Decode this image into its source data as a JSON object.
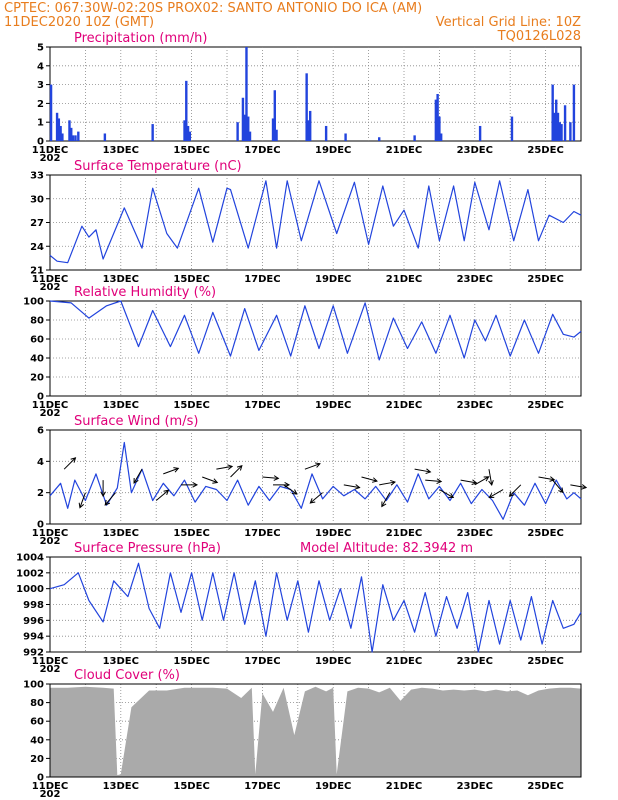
{
  "header": {
    "line1_left": "CPTEC:   067:30W-02:20S   PROX02: SANTO ANTONIO DO ICA (AM)",
    "line2_left": "11DEC2020 10Z (GMT)",
    "line2_right": "Vertical Grid Line: 10Z",
    "line3_right": "TQ0126L028"
  },
  "colors": {
    "header": "#e87d1e",
    "title": "#e0007a",
    "series": "#2244dd",
    "cloud": "#aaaaaa",
    "grid": "#888888"
  },
  "x_axis": {
    "labels": [
      "11DEC",
      "13DEC",
      "15DEC",
      "17DEC",
      "19DEC",
      "21DEC",
      "23DEC",
      "25DEC"
    ],
    "truncated_year": "202",
    "range_days": [
      0,
      15
    ]
  },
  "chart_data": [
    {
      "type": "bar",
      "name": "precip",
      "title": "Precipitation (mm/h)",
      "ylim": [
        0,
        5
      ],
      "yticks": [
        "0",
        "1",
        "2",
        "3",
        "4",
        "5"
      ],
      "x_days": [
        0.03,
        0.2,
        0.25,
        0.3,
        0.35,
        0.55,
        0.6,
        0.65,
        0.72,
        0.8,
        1.55,
        2.9,
        3.8,
        3.85,
        3.9,
        3.95,
        5.3,
        5.45,
        5.5,
        5.55,
        5.6,
        5.65,
        6.3,
        6.35,
        6.4,
        7.25,
        7.3,
        7.35,
        7.8,
        8.35,
        9.3,
        10.3,
        10.9,
        10.95,
        11,
        11.05,
        12.15,
        13.05,
        14.2,
        14.25,
        14.3,
        14.35,
        14.4,
        14.45,
        14.55,
        14.7,
        14.8
      ],
      "values": [
        3,
        1.5,
        1.2,
        0.8,
        0.4,
        1.1,
        0.7,
        0.3,
        0.3,
        0.5,
        0.4,
        0.9,
        1.1,
        3.2,
        0.8,
        0.5,
        1.0,
        2.3,
        1.4,
        5.0,
        1.3,
        0.5,
        1.2,
        2.7,
        0.6,
        3.6,
        1.1,
        1.6,
        0.8,
        0.4,
        0.2,
        0.3,
        2.2,
        2.5,
        1.3,
        0.4,
        0.8,
        1.3,
        3.0,
        1.5,
        2.2,
        1.5,
        1.0,
        0.9,
        1.9,
        1.0,
        3.0
      ]
    },
    {
      "type": "line",
      "name": "temp",
      "title": "Surface Temperature (nC)",
      "ylim": [
        21,
        34
      ],
      "yticks": [
        "21",
        "24",
        "27",
        "30",
        "33"
      ],
      "x_days": [
        0,
        0.2,
        0.5,
        0.9,
        1.1,
        1.3,
        1.5,
        2.1,
        2.6,
        2.9,
        3.3,
        3.6,
        4.2,
        4.6,
        5.0,
        5.1,
        5.6,
        6.1,
        6.4,
        6.7,
        7.1,
        7.6,
        8.1,
        8.6,
        9.0,
        9.4,
        9.7,
        10.0,
        10.4,
        10.7,
        11.0,
        11.4,
        11.7,
        12.0,
        12.4,
        12.7,
        13.1,
        13.5,
        13.8,
        14.1,
        14.5,
        14.8,
        15.0
      ],
      "values": [
        23,
        22.2,
        22.0,
        27.0,
        25.5,
        26.5,
        22.5,
        29.5,
        24.0,
        32.2,
        26.0,
        24.0,
        32.2,
        24.8,
        32.2,
        32.0,
        24.0,
        33.2,
        24.0,
        33.2,
        25.0,
        33.2,
        26.0,
        33.0,
        24.5,
        32.5,
        27.0,
        29.2,
        24.0,
        32.5,
        25.0,
        32.5,
        25.0,
        33.0,
        26.5,
        33.2,
        25.0,
        32.0,
        25.0,
        28.5,
        27.5,
        29.0,
        28.5
      ]
    },
    {
      "type": "line",
      "name": "rh",
      "title": "Relative Humidity (%)",
      "ylim": [
        0,
        100
      ],
      "yticks": [
        "0",
        "20",
        "40",
        "60",
        "80",
        "100"
      ],
      "x_days": [
        0,
        0.6,
        1.1,
        1.6,
        2.0,
        2.5,
        2.9,
        3.4,
        3.8,
        4.2,
        4.6,
        5.1,
        5.5,
        5.9,
        6.4,
        6.8,
        7.2,
        7.6,
        8.0,
        8.4,
        8.9,
        9.3,
        9.7,
        10.1,
        10.5,
        10.9,
        11.3,
        11.7,
        12.0,
        12.3,
        12.6,
        13.0,
        13.4,
        13.8,
        14.2,
        14.5,
        14.8,
        15.0
      ],
      "values": [
        100,
        98,
        82,
        95,
        100,
        52,
        90,
        52,
        85,
        45,
        88,
        42,
        92,
        48,
        85,
        42,
        95,
        50,
        95,
        45,
        98,
        38,
        82,
        50,
        78,
        45,
        85,
        40,
        80,
        58,
        85,
        42,
        80,
        45,
        86,
        65,
        62,
        68
      ]
    },
    {
      "type": "line",
      "name": "wind",
      "title": "Surface Wind (m/s)",
      "ylim": [
        0,
        6
      ],
      "yticks": [
        "0",
        "2",
        "4",
        "6"
      ],
      "x_days": [
        0,
        0.3,
        0.5,
        0.7,
        1.0,
        1.3,
        1.6,
        1.9,
        2.1,
        2.3,
        2.6,
        2.9,
        3.2,
        3.5,
        3.8,
        4.1,
        4.4,
        4.7,
        5.0,
        5.3,
        5.6,
        5.9,
        6.2,
        6.5,
        6.8,
        7.1,
        7.4,
        7.7,
        8.0,
        8.3,
        8.6,
        8.9,
        9.2,
        9.5,
        9.8,
        10.1,
        10.4,
        10.7,
        11.0,
        11.3,
        11.6,
        11.9,
        12.2,
        12.5,
        12.8,
        13.1,
        13.4,
        13.7,
        14.0,
        14.3,
        14.6,
        14.8,
        15.0
      ],
      "values": [
        1.8,
        2.6,
        1.0,
        2.8,
        1.5,
        3.2,
        1.2,
        2.3,
        5.2,
        2.0,
        3.5,
        1.5,
        2.6,
        1.8,
        2.8,
        1.4,
        2.4,
        2.2,
        1.5,
        2.8,
        1.2,
        2.4,
        1.5,
        2.4,
        2.2,
        1.0,
        3.2,
        1.6,
        2.4,
        1.8,
        2.2,
        1.6,
        2.4,
        1.5,
        2.5,
        1.4,
        3.2,
        1.6,
        2.4,
        1.5,
        2.6,
        1.3,
        2.2,
        1.5,
        0.3,
        2.0,
        1.2,
        2.6,
        1.3,
        2.8,
        1.6,
        2.0,
        1.6
      ],
      "arrow_days": [
        0.4,
        1.0,
        1.5,
        1.85,
        2.6,
        3.0,
        3.2,
        3.7,
        4.3,
        4.7,
        5.1,
        6.0,
        6.3,
        6.6,
        7.2,
        7.7,
        8.3,
        8.8,
        9.3,
        9.6,
        10.3,
        10.6,
        11.0,
        11.6,
        12.0,
        12.4,
        12.8,
        13.3,
        13.8,
        14.2,
        14.7
      ],
      "arrow_speed": [
        3.5,
        2.0,
        2.8,
        2.0,
        3.5,
        1.5,
        3.2,
        2.5,
        3.0,
        3.5,
        3.0,
        3.0,
        2.5,
        2.5,
        3.5,
        2.0,
        2.5,
        3.0,
        2.5,
        2.0,
        3.5,
        2.8,
        2.2,
        2.8,
        2.5,
        3.5,
        2.2,
        2.5,
        3.0,
        2.8,
        2.5
      ],
      "arrow_dir_deg": [
        45,
        -110,
        -90,
        -130,
        -120,
        40,
        20,
        0,
        -20,
        10,
        45,
        -5,
        0,
        -35,
        20,
        -140,
        -10,
        -15,
        10,
        -120,
        -10,
        -5,
        -30,
        -10,
        30,
        -80,
        -150,
        -135,
        -10,
        -50,
        -10
      ]
    },
    {
      "type": "line",
      "name": "pres",
      "title": "Surface Pressure (hPa)",
      "annotation": "Model Altitude: 82.3942 m",
      "ylim": [
        992,
        1004
      ],
      "yticks": [
        "992",
        "994",
        "996",
        "998",
        "1000",
        "1002",
        "1004"
      ],
      "x_days": [
        0,
        0.4,
        0.8,
        1.1,
        1.5,
        1.8,
        2.2,
        2.5,
        2.8,
        3.1,
        3.4,
        3.7,
        4.0,
        4.3,
        4.6,
        4.9,
        5.2,
        5.5,
        5.8,
        6.1,
        6.4,
        6.7,
        7.0,
        7.3,
        7.6,
        7.9,
        8.2,
        8.5,
        8.8,
        9.1,
        9.4,
        9.7,
        10.0,
        10.3,
        10.6,
        10.9,
        11.2,
        11.5,
        11.8,
        12.1,
        12.4,
        12.7,
        13.0,
        13.3,
        13.6,
        13.9,
        14.2,
        14.5,
        14.8,
        15.0
      ],
      "values": [
        1000,
        1000.5,
        1002,
        998.5,
        995.8,
        1001,
        999,
        1003.2,
        997.5,
        995,
        1002,
        997,
        1002,
        996,
        1002,
        996,
        1002,
        995.5,
        1001,
        994,
        1002,
        996,
        1001,
        994.5,
        1001,
        996,
        1000,
        995,
        1001.5,
        992,
        1000.5,
        996,
        998.5,
        994.5,
        999.5,
        994,
        999,
        995,
        999.5,
        992,
        998.5,
        993,
        998.5,
        993.5,
        999,
        993,
        998.5,
        995,
        995.5,
        997
      ]
    },
    {
      "type": "area",
      "name": "cloud",
      "title": "Cloud Cover (%)",
      "ylim": [
        0,
        100
      ],
      "yticks": [
        "0",
        "20",
        "40",
        "60",
        "80",
        "100"
      ],
      "x_days": [
        0,
        0.5,
        1.0,
        1.5,
        1.8,
        1.9,
        2.0,
        2.3,
        2.8,
        3.3,
        3.8,
        4.2,
        4.6,
        5.0,
        5.4,
        5.7,
        5.8,
        6.0,
        6.3,
        6.6,
        6.9,
        7.2,
        7.5,
        7.8,
        8.0,
        8.1,
        8.4,
        8.7,
        9.0,
        9.3,
        9.6,
        9.9,
        10.2,
        10.5,
        10.8,
        11.1,
        11.4,
        11.7,
        12.0,
        12.3,
        12.6,
        12.9,
        13.2,
        13.5,
        13.8,
        14.1,
        14.4,
        14.7,
        15.0
      ],
      "values": [
        96,
        96,
        97,
        96,
        95,
        2,
        3,
        75,
        93,
        93,
        96,
        96,
        96,
        95,
        85,
        96,
        3,
        90,
        70,
        96,
        45,
        92,
        97,
        92,
        96,
        3,
        92,
        96,
        95,
        91,
        96,
        82,
        94,
        96,
        95,
        93,
        94,
        93,
        94,
        92,
        94,
        92,
        93,
        88,
        93,
        95,
        96,
        96,
        95
      ]
    }
  ]
}
